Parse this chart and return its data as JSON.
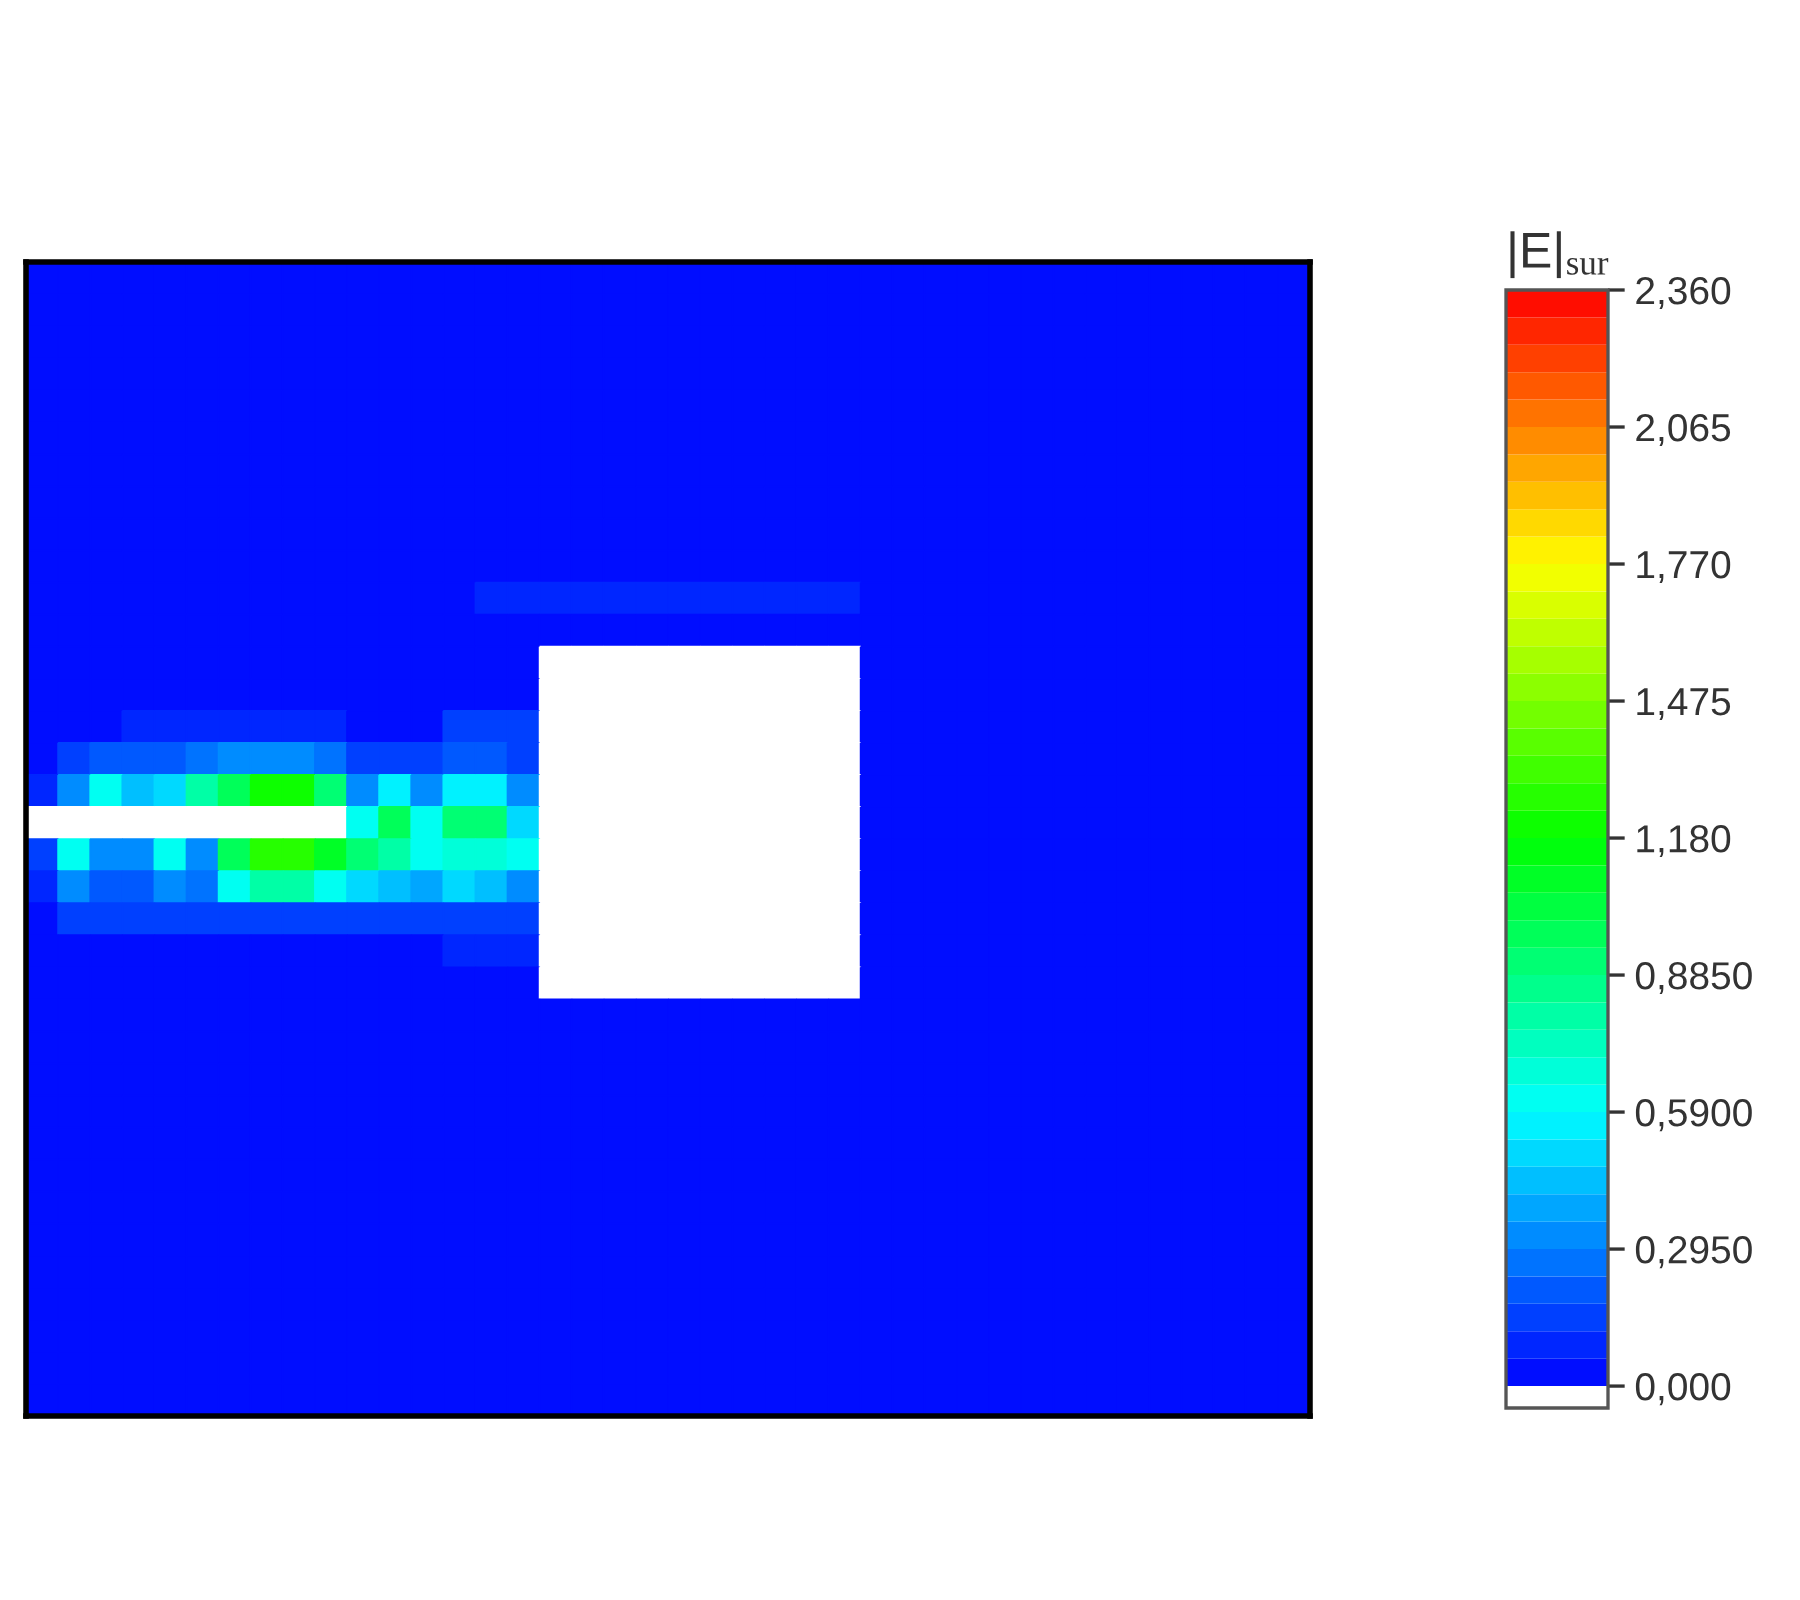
{
  "chart_data": {
    "type": "heatmap",
    "clabel": "|E|$_{sur}$",
    "categories": [
      null,
      null,
      null,
      null,
      null,
      null,
      null,
      null,
      null,
      null,
      null,
      null,
      null,
      null,
      null,
      null,
      null,
      null,
      null,
      null,
      null,
      null,
      null,
      null,
      null,
      null,
      null,
      null,
      null,
      null,
      null,
      null,
      null,
      null,
      null,
      null,
      null,
      null,
      null,
      null
    ],
    "y_categories": [
      null,
      null,
      null,
      null,
      null,
      null,
      null,
      null,
      null,
      null,
      null,
      null,
      null,
      null,
      null,
      null,
      null,
      null,
      null,
      null,
      null,
      null,
      null,
      null,
      null,
      null,
      null,
      null,
      null,
      null,
      null,
      null,
      null,
      null,
      null,
      null
    ],
    "cells": [
      [
        0.03,
        0.03,
        0.03,
        0.03,
        0.03,
        0.03,
        0.03,
        0.03,
        0.03,
        0.03,
        0.03,
        0.03,
        0.03,
        0.03,
        0.03,
        0.03,
        0.03,
        0.03,
        0.03,
        0.03,
        0.03,
        0.03,
        0.03,
        0.03,
        0.03,
        0.03,
        0.03,
        0.03,
        0.03,
        0.03,
        0.03,
        0.03,
        0.03,
        0.03,
        0.03,
        0.03,
        0.03,
        0.03,
        0.03,
        0.03
      ],
      [
        0.03,
        0.03,
        0.03,
        0.03,
        0.03,
        0.03,
        0.03,
        0.03,
        0.03,
        0.03,
        0.03,
        0.03,
        0.03,
        0.03,
        0.03,
        0.03,
        0.03,
        0.03,
        0.03,
        0.03,
        0.03,
        0.03,
        0.03,
        0.03,
        0.03,
        0.03,
        0.03,
        0.03,
        0.03,
        0.03,
        0.03,
        0.03,
        0.03,
        0.03,
        0.03,
        0.03,
        0.03,
        0.03,
        0.03,
        0.03
      ],
      [
        0.03,
        0.03,
        0.03,
        0.03,
        0.03,
        0.03,
        0.03,
        0.03,
        0.03,
        0.03,
        0.03,
        0.03,
        0.03,
        0.03,
        0.03,
        0.03,
        0.03,
        0.03,
        0.03,
        0.03,
        0.03,
        0.03,
        0.03,
        0.03,
        0.03,
        0.03,
        0.03,
        0.03,
        0.03,
        0.03,
        0.03,
        0.03,
        0.03,
        0.03,
        0.03,
        0.03,
        0.03,
        0.03,
        0.03,
        0.03
      ],
      [
        0.03,
        0.03,
        0.03,
        0.03,
        0.03,
        0.03,
        0.03,
        0.03,
        0.03,
        0.03,
        0.03,
        0.03,
        0.03,
        0.03,
        0.03,
        0.03,
        0.03,
        0.03,
        0.03,
        0.03,
        0.03,
        0.03,
        0.03,
        0.03,
        0.03,
        0.03,
        0.03,
        0.03,
        0.03,
        0.03,
        0.03,
        0.03,
        0.03,
        0.03,
        0.03,
        0.03,
        0.03,
        0.03,
        0.03,
        0.03
      ],
      [
        0.03,
        0.03,
        0.03,
        0.03,
        0.03,
        0.03,
        0.03,
        0.03,
        0.03,
        0.03,
        0.03,
        0.03,
        0.03,
        0.03,
        0.03,
        0.03,
        0.03,
        0.03,
        0.03,
        0.03,
        0.03,
        0.03,
        0.03,
        0.03,
        0.03,
        0.03,
        0.03,
        0.03,
        0.03,
        0.03,
        0.03,
        0.03,
        0.03,
        0.03,
        0.03,
        0.03,
        0.03,
        0.03,
        0.03,
        0.03
      ],
      [
        0.03,
        0.03,
        0.03,
        0.03,
        0.03,
        0.03,
        0.03,
        0.03,
        0.03,
        0.03,
        0.03,
        0.03,
        0.03,
        0.03,
        0.03,
        0.03,
        0.03,
        0.03,
        0.03,
        0.03,
        0.03,
        0.03,
        0.03,
        0.03,
        0.03,
        0.03,
        0.03,
        0.03,
        0.03,
        0.03,
        0.03,
        0.03,
        0.03,
        0.03,
        0.03,
        0.03,
        0.03,
        0.03,
        0.03,
        0.03
      ],
      [
        0.03,
        0.03,
        0.03,
        0.03,
        0.03,
        0.03,
        0.03,
        0.03,
        0.03,
        0.03,
        0.03,
        0.03,
        0.03,
        0.03,
        0.03,
        0.03,
        0.03,
        0.03,
        0.03,
        0.03,
        0.03,
        0.03,
        0.03,
        0.03,
        0.03,
        0.03,
        0.03,
        0.03,
        0.03,
        0.03,
        0.03,
        0.03,
        0.03,
        0.03,
        0.03,
        0.03,
        0.03,
        0.03,
        0.03,
        0.03
      ],
      [
        0.03,
        0.03,
        0.03,
        0.03,
        0.03,
        0.03,
        0.03,
        0.03,
        0.03,
        0.03,
        0.03,
        0.03,
        0.03,
        0.03,
        0.03,
        0.03,
        0.03,
        0.03,
        0.03,
        0.03,
        0.03,
        0.03,
        0.03,
        0.03,
        0.03,
        0.03,
        0.03,
        0.03,
        0.03,
        0.03,
        0.03,
        0.03,
        0.03,
        0.03,
        0.03,
        0.03,
        0.03,
        0.03,
        0.03,
        0.03
      ],
      [
        0.03,
        0.03,
        0.03,
        0.03,
        0.03,
        0.03,
        0.03,
        0.03,
        0.03,
        0.03,
        0.03,
        0.03,
        0.03,
        0.03,
        0.03,
        0.03,
        0.03,
        0.03,
        0.03,
        0.03,
        0.03,
        0.03,
        0.03,
        0.03,
        0.03,
        0.03,
        0.03,
        0.03,
        0.03,
        0.03,
        0.03,
        0.03,
        0.03,
        0.03,
        0.03,
        0.03,
        0.03,
        0.03,
        0.03,
        0.03
      ],
      [
        0.03,
        0.03,
        0.03,
        0.03,
        0.03,
        0.03,
        0.03,
        0.03,
        0.03,
        0.03,
        0.03,
        0.03,
        0.03,
        0.03,
        0.03,
        0.03,
        0.03,
        0.03,
        0.03,
        0.03,
        0.03,
        0.03,
        0.03,
        0.03,
        0.03,
        0.03,
        0.03,
        0.03,
        0.03,
        0.03,
        0.03,
        0.03,
        0.03,
        0.03,
        0.03,
        0.03,
        0.03,
        0.03,
        0.03,
        0.03
      ],
      [
        0.03,
        0.03,
        0.03,
        0.03,
        0.03,
        0.03,
        0.03,
        0.03,
        0.03,
        0.03,
        0.03,
        0.03,
        0.03,
        0.03,
        0.09,
        0.09,
        0.09,
        0.09,
        0.09,
        0.09,
        0.09,
        0.09,
        0.09,
        0.09,
        0.09,
        0.09,
        0.03,
        0.03,
        0.03,
        0.03,
        0.03,
        0.03,
        0.03,
        0.03,
        0.03,
        0.03,
        0.03,
        0.03,
        0.03,
        0.03
      ],
      [
        0.03,
        0.03,
        0.03,
        0.03,
        0.03,
        0.03,
        0.03,
        0.03,
        0.03,
        0.03,
        0.03,
        0.03,
        0.03,
        0.03,
        0.03,
        0.03,
        0.03,
        0.03,
        0.03,
        0.03,
        0.03,
        0.03,
        0.03,
        0.03,
        0.03,
        0.03,
        0.03,
        0.03,
        0.03,
        0.03,
        0.03,
        0.03,
        0.03,
        0.03,
        0.03,
        0.03,
        0.03,
        0.03,
        0.03,
        0.03
      ],
      [
        0.03,
        0.03,
        0.03,
        0.03,
        0.03,
        0.03,
        0.03,
        0.03,
        0.03,
        0.03,
        0.03,
        0.03,
        0.03,
        0.03,
        0.03,
        0.03,
        null,
        null,
        null,
        null,
        null,
        null,
        null,
        null,
        null,
        null,
        0.03,
        0.03,
        0.03,
        0.03,
        0.03,
        0.03,
        0.03,
        0.03,
        0.03,
        0.03,
        0.03,
        0.03,
        0.03,
        0.03
      ],
      [
        0.03,
        0.03,
        0.03,
        0.03,
        0.03,
        0.03,
        0.03,
        0.03,
        0.03,
        0.03,
        0.03,
        0.03,
        0.03,
        0.03,
        0.03,
        0.03,
        null,
        null,
        null,
        null,
        null,
        null,
        null,
        null,
        null,
        null,
        0.03,
        0.03,
        0.03,
        0.03,
        0.03,
        0.03,
        0.03,
        0.03,
        0.03,
        0.03,
        0.03,
        0.03,
        0.03,
        0.03
      ],
      [
        0.03,
        0.03,
        0.03,
        0.09,
        0.09,
        0.09,
        0.09,
        0.09,
        0.09,
        0.09,
        0.03,
        0.03,
        0.03,
        0.12,
        0.12,
        0.12,
        null,
        null,
        null,
        null,
        null,
        null,
        null,
        null,
        null,
        null,
        0.03,
        0.03,
        0.03,
        0.03,
        0.03,
        0.03,
        0.03,
        0.03,
        0.03,
        0.03,
        0.03,
        0.03,
        0.03,
        0.03
      ],
      [
        0.03,
        0.12,
        0.2,
        0.2,
        0.2,
        0.25,
        0.3,
        0.3,
        0.3,
        0.25,
        0.15,
        0.15,
        0.15,
        0.2,
        0.2,
        0.15,
        null,
        null,
        null,
        null,
        null,
        null,
        null,
        null,
        null,
        null,
        0.03,
        0.03,
        0.03,
        0.03,
        0.03,
        0.03,
        0.03,
        0.03,
        0.03,
        0.03,
        0.03,
        0.03,
        0.03,
        0.03
      ],
      [
        0.09,
        0.35,
        0.6,
        0.45,
        0.5,
        0.8,
        1.0,
        1.2,
        1.2,
        0.9,
        0.3,
        0.55,
        0.35,
        0.55,
        0.55,
        0.3,
        null,
        null,
        null,
        null,
        null,
        null,
        null,
        null,
        null,
        null,
        0.03,
        0.03,
        0.03,
        0.03,
        0.03,
        0.03,
        0.03,
        0.03,
        0.03,
        0.03,
        0.03,
        0.03,
        0.03,
        0.03
      ],
      [
        null,
        null,
        null,
        null,
        null,
        null,
        null,
        null,
        null,
        null,
        0.6,
        1.0,
        0.6,
        0.9,
        0.9,
        0.5,
        null,
        null,
        null,
        null,
        null,
        null,
        null,
        null,
        null,
        null,
        0.03,
        0.03,
        0.03,
        0.03,
        0.03,
        0.03,
        0.03,
        0.03,
        0.03,
        0.03,
        0.03,
        0.03,
        0.03,
        0.03
      ],
      [
        0.15,
        0.6,
        0.35,
        0.3,
        0.6,
        0.3,
        1.0,
        1.25,
        1.25,
        1.1,
        0.9,
        0.8,
        0.6,
        0.7,
        0.7,
        0.6,
        null,
        null,
        null,
        null,
        null,
        null,
        null,
        null,
        null,
        null,
        0.03,
        0.03,
        0.03,
        0.03,
        0.03,
        0.03,
        0.03,
        0.03,
        0.03,
        0.03,
        0.03,
        0.03,
        0.03,
        0.03
      ],
      [
        0.09,
        0.3,
        0.2,
        0.2,
        0.3,
        0.25,
        0.6,
        0.8,
        0.8,
        0.6,
        0.5,
        0.45,
        0.4,
        0.5,
        0.45,
        0.35,
        null,
        null,
        null,
        null,
        null,
        null,
        null,
        null,
        null,
        null,
        0.03,
        0.03,
        0.03,
        0.03,
        0.03,
        0.03,
        0.03,
        0.03,
        0.03,
        0.03,
        0.03,
        0.03,
        0.03,
        0.03
      ],
      [
        0.03,
        0.12,
        0.12,
        0.12,
        0.12,
        0.12,
        0.12,
        0.12,
        0.12,
        0.12,
        0.12,
        0.12,
        0.12,
        0.15,
        0.15,
        0.15,
        null,
        null,
        null,
        null,
        null,
        null,
        null,
        null,
        null,
        null,
        0.03,
        0.03,
        0.03,
        0.03,
        0.03,
        0.03,
        0.03,
        0.03,
        0.03,
        0.03,
        0.03,
        0.03,
        0.03,
        0.03
      ],
      [
        0.03,
        0.03,
        0.03,
        0.03,
        0.03,
        0.03,
        0.03,
        0.03,
        0.03,
        0.03,
        0.03,
        0.03,
        0.03,
        0.09,
        0.09,
        0.09,
        null,
        null,
        null,
        null,
        null,
        null,
        null,
        null,
        null,
        null,
        0.03,
        0.03,
        0.03,
        0.03,
        0.03,
        0.03,
        0.03,
        0.03,
        0.03,
        0.03,
        0.03,
        0.03,
        0.03,
        0.03
      ],
      [
        0.03,
        0.03,
        0.03,
        0.03,
        0.03,
        0.03,
        0.03,
        0.03,
        0.03,
        0.03,
        0.03,
        0.03,
        0.03,
        0.03,
        0.03,
        0.03,
        null,
        null,
        null,
        null,
        null,
        null,
        null,
        null,
        null,
        null,
        0.03,
        0.03,
        0.03,
        0.03,
        0.03,
        0.03,
        0.03,
        0.03,
        0.03,
        0.03,
        0.03,
        0.03,
        0.03,
        0.03
      ],
      [
        0.03,
        0.03,
        0.03,
        0.03,
        0.03,
        0.03,
        0.03,
        0.03,
        0.03,
        0.03,
        0.03,
        0.03,
        0.03,
        0.03,
        0.03,
        0.03,
        0.03,
        0.03,
        0.03,
        0.03,
        0.03,
        0.03,
        0.03,
        0.03,
        0.03,
        0.03,
        0.03,
        0.03,
        0.03,
        0.03,
        0.03,
        0.03,
        0.03,
        0.03,
        0.03,
        0.03,
        0.03,
        0.03,
        0.03,
        0.03
      ],
      [
        0.03,
        0.03,
        0.03,
        0.03,
        0.03,
        0.03,
        0.03,
        0.03,
        0.03,
        0.03,
        0.03,
        0.03,
        0.03,
        0.03,
        0.03,
        0.03,
        0.03,
        0.03,
        0.03,
        0.03,
        0.03,
        0.03,
        0.03,
        0.03,
        0.03,
        0.03,
        0.03,
        0.03,
        0.03,
        0.03,
        0.03,
        0.03,
        0.03,
        0.03,
        0.03,
        0.03,
        0.03,
        0.03,
        0.03,
        0.03
      ],
      [
        0.03,
        0.03,
        0.03,
        0.03,
        0.03,
        0.03,
        0.03,
        0.03,
        0.03,
        0.03,
        0.03,
        0.03,
        0.03,
        0.03,
        0.03,
        0.03,
        0.03,
        0.03,
        0.03,
        0.03,
        0.03,
        0.03,
        0.03,
        0.03,
        0.03,
        0.03,
        0.03,
        0.03,
        0.03,
        0.03,
        0.03,
        0.03,
        0.03,
        0.03,
        0.03,
        0.03,
        0.03,
        0.03,
        0.03,
        0.03
      ],
      [
        0.03,
        0.03,
        0.03,
        0.03,
        0.03,
        0.03,
        0.03,
        0.03,
        0.03,
        0.03,
        0.03,
        0.03,
        0.03,
        0.03,
        0.03,
        0.03,
        0.03,
        0.03,
        0.03,
        0.03,
        0.03,
        0.03,
        0.03,
        0.03,
        0.03,
        0.03,
        0.03,
        0.03,
        0.03,
        0.03,
        0.03,
        0.03,
        0.03,
        0.03,
        0.03,
        0.03,
        0.03,
        0.03,
        0.03,
        0.03
      ],
      [
        0.03,
        0.03,
        0.03,
        0.03,
        0.03,
        0.03,
        0.03,
        0.03,
        0.03,
        0.03,
        0.03,
        0.03,
        0.03,
        0.03,
        0.03,
        0.03,
        0.03,
        0.03,
        0.03,
        0.03,
        0.03,
        0.03,
        0.03,
        0.03,
        0.03,
        0.03,
        0.03,
        0.03,
        0.03,
        0.03,
        0.03,
        0.03,
        0.03,
        0.03,
        0.03,
        0.03,
        0.03,
        0.03,
        0.03,
        0.03
      ],
      [
        0.03,
        0.03,
        0.03,
        0.03,
        0.03,
        0.03,
        0.03,
        0.03,
        0.03,
        0.03,
        0.03,
        0.03,
        0.03,
        0.03,
        0.03,
        0.03,
        0.03,
        0.03,
        0.03,
        0.03,
        0.03,
        0.03,
        0.03,
        0.03,
        0.03,
        0.03,
        0.03,
        0.03,
        0.03,
        0.03,
        0.03,
        0.03,
        0.03,
        0.03,
        0.03,
        0.03,
        0.03,
        0.03,
        0.03,
        0.03
      ],
      [
        0.03,
        0.03,
        0.03,
        0.03,
        0.03,
        0.03,
        0.03,
        0.03,
        0.03,
        0.03,
        0.03,
        0.03,
        0.03,
        0.03,
        0.03,
        0.03,
        0.03,
        0.03,
        0.03,
        0.03,
        0.03,
        0.03,
        0.03,
        0.03,
        0.03,
        0.03,
        0.03,
        0.03,
        0.03,
        0.03,
        0.03,
        0.03,
        0.03,
        0.03,
        0.03,
        0.03,
        0.03,
        0.03,
        0.03,
        0.03
      ],
      [
        0.03,
        0.03,
        0.03,
        0.03,
        0.03,
        0.03,
        0.03,
        0.03,
        0.03,
        0.03,
        0.03,
        0.03,
        0.03,
        0.03,
        0.03,
        0.03,
        0.03,
        0.03,
        0.03,
        0.03,
        0.03,
        0.03,
        0.03,
        0.03,
        0.03,
        0.03,
        0.03,
        0.03,
        0.03,
        0.03,
        0.03,
        0.03,
        0.03,
        0.03,
        0.03,
        0.03,
        0.03,
        0.03,
        0.03,
        0.03
      ],
      [
        0.03,
        0.03,
        0.03,
        0.03,
        0.03,
        0.03,
        0.03,
        0.03,
        0.03,
        0.03,
        0.03,
        0.03,
        0.03,
        0.03,
        0.03,
        0.03,
        0.03,
        0.03,
        0.03,
        0.03,
        0.03,
        0.03,
        0.03,
        0.03,
        0.03,
        0.03,
        0.03,
        0.03,
        0.03,
        0.03,
        0.03,
        0.03,
        0.03,
        0.03,
        0.03,
        0.03,
        0.03,
        0.03,
        0.03,
        0.03
      ],
      [
        0.03,
        0.03,
        0.03,
        0.03,
        0.03,
        0.03,
        0.03,
        0.03,
        0.03,
        0.03,
        0.03,
        0.03,
        0.03,
        0.03,
        0.03,
        0.03,
        0.03,
        0.03,
        0.03,
        0.03,
        0.03,
        0.03,
        0.03,
        0.03,
        0.03,
        0.03,
        0.03,
        0.03,
        0.03,
        0.03,
        0.03,
        0.03,
        0.03,
        0.03,
        0.03,
        0.03,
        0.03,
        0.03,
        0.03,
        0.03
      ],
      [
        0.03,
        0.03,
        0.03,
        0.03,
        0.03,
        0.03,
        0.03,
        0.03,
        0.03,
        0.03,
        0.03,
        0.03,
        0.03,
        0.03,
        0.03,
        0.03,
        0.03,
        0.03,
        0.03,
        0.03,
        0.03,
        0.03,
        0.03,
        0.03,
        0.03,
        0.03,
        0.03,
        0.03,
        0.03,
        0.03,
        0.03,
        0.03,
        0.03,
        0.03,
        0.03,
        0.03,
        0.03,
        0.03,
        0.03,
        0.03
      ],
      [
        0.03,
        0.03,
        0.03,
        0.03,
        0.03,
        0.03,
        0.03,
        0.03,
        0.03,
        0.03,
        0.03,
        0.03,
        0.03,
        0.03,
        0.03,
        0.03,
        0.03,
        0.03,
        0.03,
        0.03,
        0.03,
        0.03,
        0.03,
        0.03,
        0.03,
        0.03,
        0.03,
        0.03,
        0.03,
        0.03,
        0.03,
        0.03,
        0.03,
        0.03,
        0.03,
        0.03,
        0.03,
        0.03,
        0.03,
        0.03
      ],
      [
        0.03,
        0.03,
        0.03,
        0.03,
        0.03,
        0.03,
        0.03,
        0.03,
        0.03,
        0.03,
        0.03,
        0.03,
        0.03,
        0.03,
        0.03,
        0.03,
        0.03,
        0.03,
        0.03,
        0.03,
        0.03,
        0.03,
        0.03,
        0.03,
        0.03,
        0.03,
        0.03,
        0.03,
        0.03,
        0.03,
        0.03,
        0.03,
        0.03,
        0.03,
        0.03,
        0.03,
        0.03,
        0.03,
        0.03,
        0.03
      ]
    ],
    "clim": [
      0,
      2.36
    ],
    "cticks": [
      {
        "value": 0,
        "label": "0,000"
      },
      {
        "value": 0.295,
        "label": "0,2950"
      },
      {
        "value": 0.59,
        "label": "0,5900"
      },
      {
        "value": 0.885,
        "label": "0,8850"
      },
      {
        "value": 1.18,
        "label": "1,180"
      },
      {
        "value": 1.475,
        "label": "1,475"
      },
      {
        "value": 1.77,
        "label": "1,770"
      },
      {
        "value": 2.065,
        "label": "2,065"
      },
      {
        "value": 2.36,
        "label": "2,360"
      }
    ]
  }
}
